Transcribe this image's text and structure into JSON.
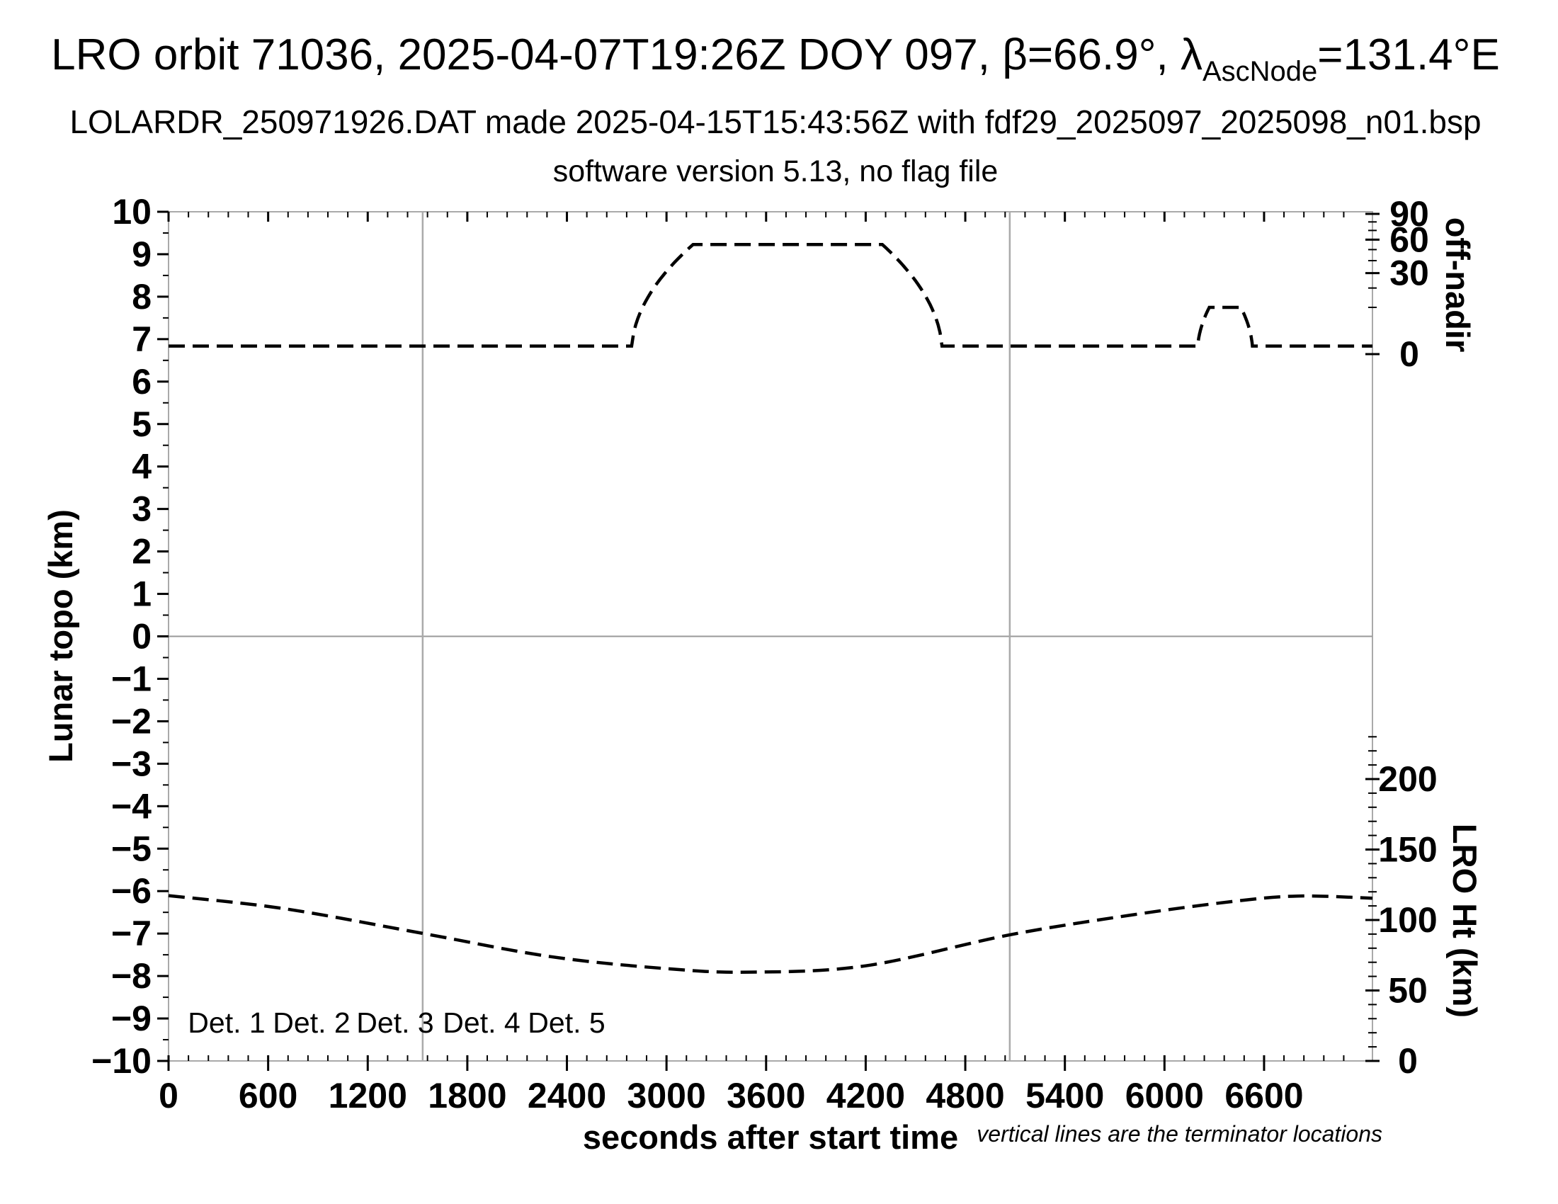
{
  "title": {
    "part1": "LRO orbit 71036, 2025-04-07T19:26Z DOY 097, β=66.9°, λ",
    "sub": "AscNode",
    "part2": "=131.4°E"
  },
  "subtitle1": "LOLARDR_250971926.DAT made 2025-04-15T15:43:56Z with fdf29_2025097_2025098_n01.bsp",
  "subtitle2": "software version 5.13, no flag file",
  "footnote": "vertical lines are the terminator locations",
  "axes": {
    "x": {
      "label": "seconds after start time",
      "min": 0,
      "max": 7253,
      "major_ticks": [
        0,
        600,
        1200,
        1800,
        2400,
        3000,
        3600,
        4200,
        4800,
        5400,
        6000,
        6600
      ],
      "minor_step": 120
    },
    "y_left": {
      "label": "Lunar topo (km)",
      "min": -10,
      "max": 10,
      "major_step": 1,
      "minor_step": 0.5
    },
    "off_nadir": {
      "label": "off-nadir",
      "major_ticks": [
        0,
        30,
        60,
        90
      ],
      "minor_ticks": [
        10,
        20,
        40,
        50,
        70,
        80
      ],
      "scale": "sqrt",
      "range": [
        0,
        90
      ]
    },
    "lro_ht": {
      "label": "LRO Ht (km)",
      "major_ticks": [
        0,
        50,
        100,
        150,
        200
      ],
      "minor_step": 10,
      "minor_max": 230
    }
  },
  "legend": [
    {
      "label": "Det. 1",
      "color": "#000000"
    },
    {
      "label": "Det. 2",
      "color": "#0000ee"
    },
    {
      "label": "Det. 3",
      "color": "#00dd00"
    },
    {
      "label": "Det. 4",
      "color": "#ffa500"
    },
    {
      "label": "Det. 5",
      "color": "#ff0000"
    }
  ],
  "colors": {
    "curve": "#000000",
    "frame_gray": "#aaaaaa",
    "zero_line_gray": "#999999"
  },
  "chart_data": {
    "type": "line",
    "title": "LRO orbit 71036 LOLA RDR QA plot",
    "xlabel": "seconds after start time",
    "x_range": [
      0,
      7253
    ],
    "y_left_label": "Lunar topo (km)",
    "y_left_range": [
      -10,
      10
    ],
    "grid": "zero-line only",
    "legend_position": "bottom-left inside plot",
    "terminator_lines_s": [
      1531,
      5068
    ],
    "series": [
      {
        "name": "off-nadir angle",
        "axis": "off-nadir (deg, sqrt-spaced right axis, 0 at left-axis 6.7)",
        "style": "black dashed",
        "points_t_s_vs_deg": [
          [
            0,
            0.3
          ],
          [
            2790,
            0.3
          ],
          [
            3160,
            55
          ],
          [
            4300,
            55
          ],
          [
            4660,
            0.3
          ],
          [
            6200,
            0.3
          ],
          [
            6270,
            10
          ],
          [
            6460,
            10
          ],
          [
            6530,
            0.3
          ],
          [
            7253,
            0.3
          ]
        ]
      },
      {
        "name": "LRO height",
        "axis": "LRO Ht (km, linear right axis, 0 at plot bottom)",
        "style": "black dashed",
        "points_t_s_vs_km": [
          [
            0,
            117.3
          ],
          [
            700,
            108
          ],
          [
            1531,
            90.5
          ],
          [
            2300,
            74
          ],
          [
            3000,
            65.5
          ],
          [
            3500,
            63
          ],
          [
            4200,
            67.5
          ],
          [
            5068,
            89.5
          ],
          [
            5800,
            103.5
          ],
          [
            6400,
            113
          ],
          [
            6800,
            117
          ],
          [
            7253,
            115.5
          ]
        ]
      }
    ]
  }
}
